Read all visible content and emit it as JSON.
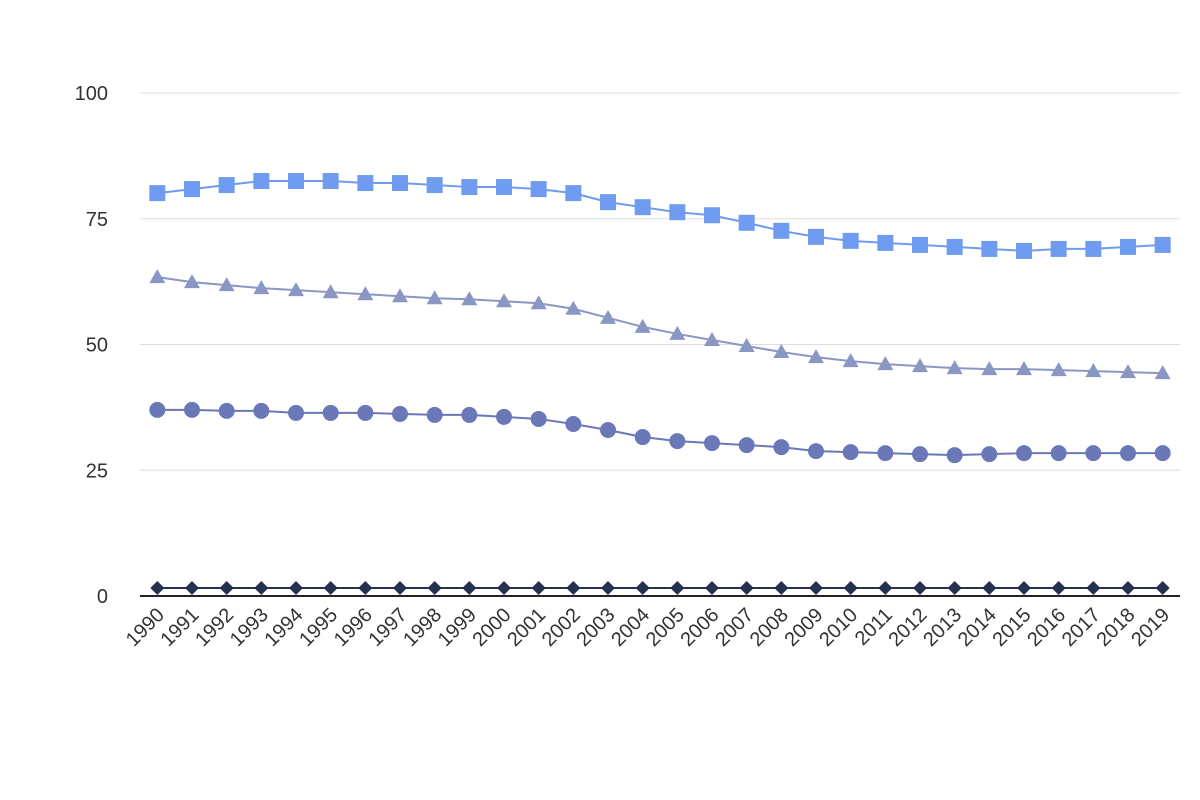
{
  "chart_data": {
    "type": "line",
    "categories": [
      "1990",
      "1991",
      "1992",
      "1993",
      "1994",
      "1995",
      "1996",
      "1997",
      "1998",
      "1999",
      "2000",
      "2001",
      "2002",
      "2003",
      "2004",
      "2005",
      "2006",
      "2007",
      "2008",
      "2009",
      "2010",
      "2011",
      "2012",
      "2013",
      "2014",
      "2015",
      "2016",
      "2017",
      "2018",
      "2019"
    ],
    "series": [
      {
        "color": "#6f9cf0",
        "marker": "square",
        "values": [
          80.1,
          80.9,
          81.7,
          82.5,
          82.5,
          82.5,
          82.1,
          82.1,
          81.7,
          81.3,
          81.3,
          80.9,
          80.1,
          78.3,
          77.3,
          76.3,
          75.7,
          74.2,
          72.6,
          71.4,
          70.6,
          70.2,
          69.8,
          69.4,
          69.0,
          68.6,
          69.0,
          69.0,
          69.4,
          69.8
        ]
      },
      {
        "color": "#8a97c2",
        "marker": "triangle",
        "values": [
          63.4,
          62.4,
          61.8,
          61.2,
          60.8,
          60.4,
          60.0,
          59.6,
          59.2,
          59.0,
          58.6,
          58.2,
          57.1,
          55.3,
          53.5,
          52.1,
          50.9,
          49.7,
          48.5,
          47.5,
          46.7,
          46.1,
          45.7,
          45.3,
          45.1,
          45.1,
          44.9,
          44.7,
          44.5,
          44.3
        ]
      },
      {
        "color": "#6a78b8",
        "marker": "circle",
        "values": [
          37.0,
          37.0,
          36.8,
          36.8,
          36.4,
          36.4,
          36.4,
          36.2,
          36.0,
          36.0,
          35.6,
          35.2,
          34.2,
          33.0,
          31.6,
          30.8,
          30.4,
          30.0,
          29.6,
          28.8,
          28.6,
          28.4,
          28.2,
          28.0,
          28.2,
          28.4,
          28.4,
          28.4,
          28.4,
          28.4
        ]
      },
      {
        "color": "#25324f",
        "marker": "diamond",
        "values": [
          1.6,
          1.6,
          1.6,
          1.6,
          1.6,
          1.6,
          1.6,
          1.6,
          1.6,
          1.6,
          1.6,
          1.6,
          1.6,
          1.6,
          1.6,
          1.6,
          1.6,
          1.6,
          1.6,
          1.6,
          1.6,
          1.6,
          1.6,
          1.6,
          1.6,
          1.6,
          1.6,
          1.6,
          1.6,
          1.6
        ]
      }
    ],
    "ylim": [
      0,
      100
    ],
    "yticks": [
      0,
      25,
      50,
      75,
      100
    ],
    "grid": true
  }
}
